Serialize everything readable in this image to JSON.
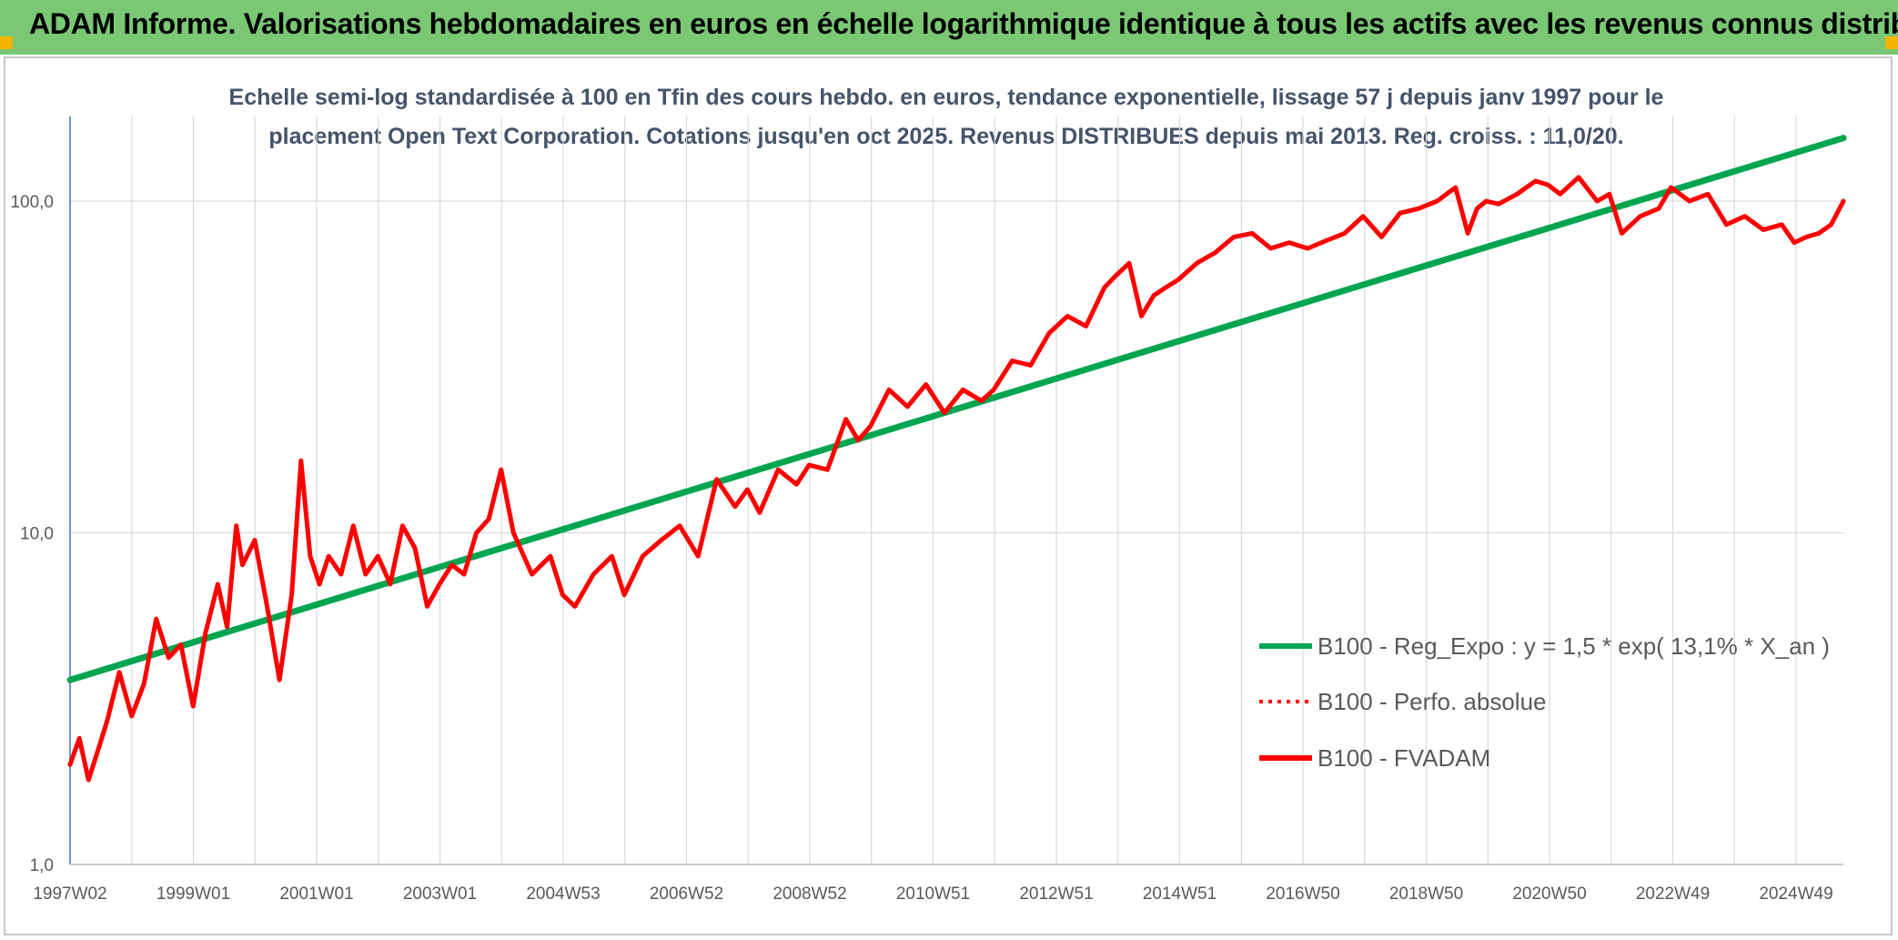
{
  "header": {
    "title": "ADAM Informe. Valorisations hebdomadaires en euros en échelle logarithmique identique à tous les actifs avec les revenus connus distribués"
  },
  "colors": {
    "header_bg": "#7ac874",
    "regression": "#00a550",
    "fvadam": "#ff0000",
    "perfo": "#ff0000",
    "subtitle": "#44546a",
    "grid": "#d9d9d9"
  },
  "chart_data": {
    "type": "line",
    "title_lines": [
      "Echelle semi-log standardisée à 100 en Tfin des cours hebdo. en euros, tendance exponentielle, lissage 57 j depuis janv 1997 pour le",
      "placement Open Text Corporation. Cotations jusqu'en oct 2025. Revenus DISTRIBUES depuis mai 2013. Reg. croiss. : 11,0/20."
    ],
    "y_scale": "log",
    "ylim": [
      1,
      180
    ],
    "y_ticks": [
      "1,0",
      "10,0",
      "100,0"
    ],
    "x_ticks": [
      "1997W02",
      "1999W01",
      "2001W01",
      "2003W01",
      "2004W53",
      "2006W52",
      "2008W52",
      "2010W51",
      "2012W51",
      "2014W51",
      "2016W50",
      "2018W50",
      "2020W50",
      "2022W49",
      "2024W49"
    ],
    "xlim": [
      1997.0,
      2025.8
    ],
    "grid": true,
    "legend_position": "right",
    "series": [
      {
        "name": "B100 - Reg_Expo : y = 1,5 * exp( 13,1% *  X_an )",
        "style": "solid-thick",
        "x": [
          1997.0,
          2025.8
        ],
        "values": [
          3.6,
          155
        ]
      },
      {
        "name": "B100 - Perfo. absolue",
        "style": "dotted",
        "x": [],
        "values": []
      },
      {
        "name": "B100 - FVADAM",
        "style": "solid",
        "x": [
          1997.0,
          1997.15,
          1997.3,
          1997.45,
          1997.6,
          1997.8,
          1998.0,
          1998.2,
          1998.4,
          1998.6,
          1998.8,
          1999.0,
          1999.2,
          1999.4,
          1999.55,
          1999.7,
          1999.8,
          2000.0,
          2000.2,
          2000.4,
          2000.6,
          2000.75,
          2000.9,
          2001.05,
          2001.2,
          2001.4,
          2001.6,
          2001.8,
          2002.0,
          2002.2,
          2002.4,
          2002.6,
          2002.8,
          2003.0,
          2003.2,
          2003.4,
          2003.6,
          2003.8,
          2004.0,
          2004.2,
          2004.5,
          2004.8,
          2005.0,
          2005.2,
          2005.5,
          2005.8,
          2006.0,
          2006.3,
          2006.6,
          2006.9,
          2007.2,
          2007.5,
          2007.8,
          2008.0,
          2008.2,
          2008.5,
          2008.8,
          2009.0,
          2009.3,
          2009.6,
          2009.8,
          2010.0,
          2010.3,
          2010.6,
          2010.9,
          2011.2,
          2011.5,
          2011.8,
          2012.0,
          2012.3,
          2012.6,
          2012.9,
          2013.2,
          2013.5,
          2013.8,
          2014.0,
          2014.2,
          2014.4,
          2014.6,
          2014.8,
          2015.0,
          2015.3,
          2015.6,
          2015.9,
          2016.2,
          2016.5,
          2016.8,
          2017.1,
          2017.4,
          2017.7,
          2018.0,
          2018.3,
          2018.6,
          2018.9,
          2019.2,
          2019.5,
          2019.7,
          2019.85,
          2020.0,
          2020.2,
          2020.5,
          2020.8,
          2021.0,
          2021.2,
          2021.5,
          2021.8,
          2022.0,
          2022.2,
          2022.5,
          2022.8,
          2023.0,
          2023.3,
          2023.6,
          2023.9,
          2024.2,
          2024.5,
          2024.8,
          2025.0,
          2025.2,
          2025.4,
          2025.6,
          2025.8
        ],
        "values": [
          2.0,
          2.4,
          1.8,
          2.2,
          2.7,
          3.8,
          2.8,
          3.5,
          5.5,
          4.2,
          4.6,
          3.0,
          5.0,
          7.0,
          5.2,
          10.5,
          8.0,
          9.5,
          6.0,
          3.6,
          6.5,
          16.5,
          8.5,
          7.0,
          8.5,
          7.5,
          10.5,
          7.5,
          8.5,
          7.0,
          10.5,
          9.0,
          6.0,
          7.0,
          8.0,
          7.5,
          10.0,
          11.0,
          15.5,
          10.0,
          7.5,
          8.5,
          6.5,
          6.0,
          7.5,
          8.5,
          6.5,
          8.5,
          9.5,
          10.5,
          8.5,
          14.5,
          12.0,
          13.5,
          11.5,
          15.5,
          14.0,
          16.0,
          15.5,
          22.0,
          19.0,
          21.0,
          27.0,
          24.0,
          28.0,
          23.0,
          27.0,
          25.0,
          27.0,
          33.0,
          32.0,
          40.0,
          45.0,
          42.0,
          55.0,
          60.0,
          65.0,
          45.0,
          52.0,
          55.0,
          58.0,
          65.0,
          70.0,
          78.0,
          80.0,
          72.0,
          75.0,
          72.0,
          76.0,
          80.0,
          90.0,
          78.0,
          92.0,
          95.0,
          100.0,
          110.0,
          80.0,
          95.0,
          100.0,
          98.0,
          105.0,
          115.0,
          112.0,
          105.0,
          118.0,
          100.0,
          105.0,
          80.0,
          90.0,
          95.0,
          110.0,
          100.0,
          105.0,
          85.0,
          90.0,
          82.0,
          85.0,
          75.0,
          78.0,
          80.0,
          85.0,
          100.0
        ]
      }
    ]
  }
}
